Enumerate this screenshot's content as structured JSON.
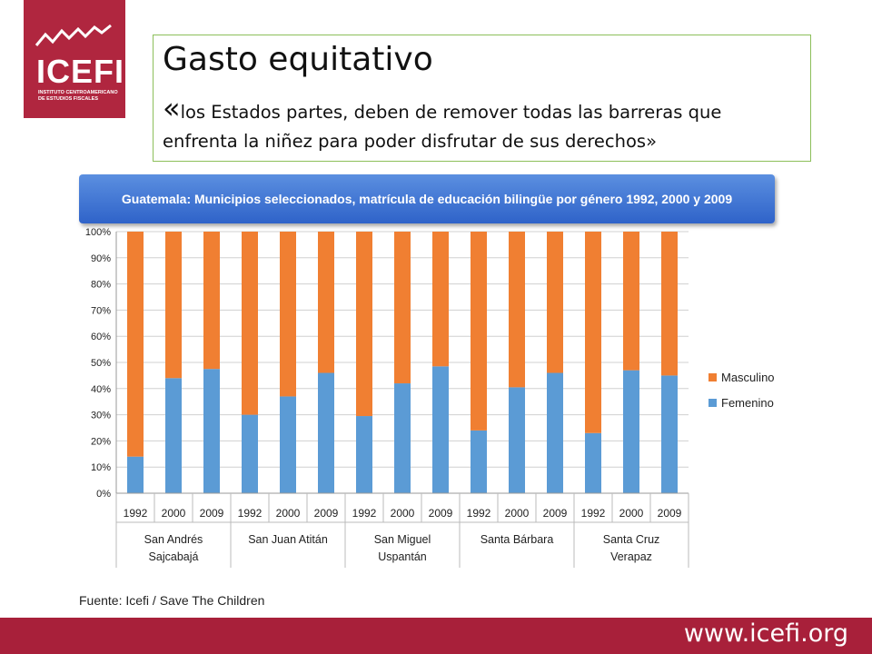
{
  "logo": {
    "name": "ICEFI",
    "subtitle": "INSTITUTO CENTROAMERICANO DE ESTUDIOS FISCALES"
  },
  "slide": {
    "title": "Gasto equitativo",
    "quote_open": "«",
    "quote_text": "los Estados partes, deben de remover todas las barreras que enfrenta la niñez para poder disfrutar de sus derechos»",
    "source": "Fuente: Icefi / Save The Children",
    "footer_url": "www.icefi.org"
  },
  "colors": {
    "brand": "#a8203a",
    "masculino": "#f07f32",
    "femenino": "#5b9bd5",
    "banner": "#3a6fd0"
  },
  "chart_data": {
    "type": "bar",
    "stacked": true,
    "title": "Guatemala: Municipios seleccionados, matrícula de educación bilingüe por género 1992, 2000 y 2009",
    "categories": [
      "1992",
      "2000",
      "2009",
      "1992",
      "2000",
      "2009",
      "1992",
      "2000",
      "2009",
      "1992",
      "2000",
      "2009",
      "1992",
      "2000",
      "2009"
    ],
    "groups": [
      {
        "label": [
          "San Andrés",
          "Sajcabajá"
        ],
        "count": 3
      },
      {
        "label": [
          "San Juan Atitán"
        ],
        "count": 3
      },
      {
        "label": [
          "San Miguel",
          "Uspantán"
        ],
        "count": 3
      },
      {
        "label": [
          "Santa Bárbara"
        ],
        "count": 3
      },
      {
        "label": [
          "Santa Cruz",
          "Verapaz"
        ],
        "count": 3
      }
    ],
    "series": [
      {
        "name": "Femenino",
        "values": [
          14,
          44,
          47.5,
          30,
          37,
          46,
          29.5,
          42,
          48.5,
          24,
          40.5,
          46,
          23,
          47,
          45
        ]
      },
      {
        "name": "Masculino",
        "values": [
          86,
          56,
          52.5,
          70,
          63,
          54,
          70.5,
          58,
          51.5,
          76,
          59.5,
          54,
          77,
          53,
          55
        ]
      }
    ],
    "ylim": [
      0,
      100
    ],
    "yticks": [
      "0%",
      "10%",
      "20%",
      "30%",
      "40%",
      "50%",
      "60%",
      "70%",
      "80%",
      "90%",
      "100%"
    ],
    "legend_position": "right",
    "grid": true
  }
}
